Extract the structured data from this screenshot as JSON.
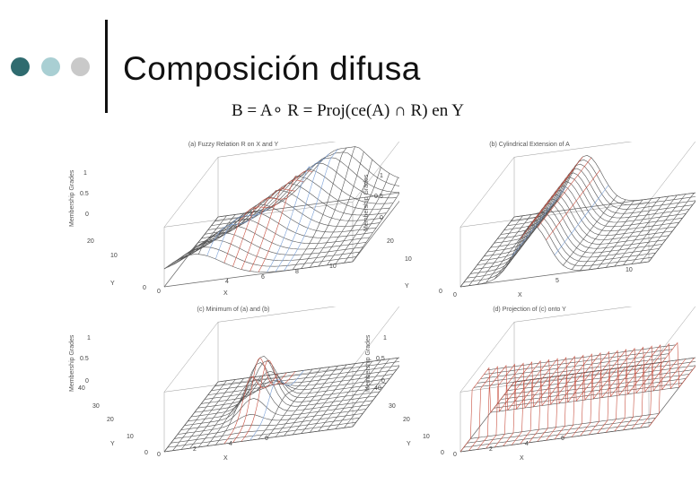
{
  "slide": {
    "title": "Composición difusa",
    "formula": "B = A∘ R = Proj(ce(A) ∩ R) en Y"
  },
  "panels": [
    {
      "id": "a",
      "title": "(a) Fuzzy Relation R on X and Y",
      "z_axis_label": "Membership Grades",
      "shape": "ridge",
      "z_ticks": [
        "1",
        "0.5",
        "0"
      ],
      "y_ticks": [
        "20",
        "10",
        "0"
      ],
      "x_ticks": [
        "0",
        "4",
        "6",
        "8",
        "10"
      ],
      "y_axis_label": "Y",
      "x_axis_label": "X"
    },
    {
      "id": "b",
      "title": "(b) Cylindrical Extension of A",
      "z_axis_label": "Membership Grades",
      "shape": "cylinder",
      "z_ticks": [
        "1",
        "0.5",
        "0"
      ],
      "y_ticks": [
        "20",
        "10",
        "0"
      ],
      "x_ticks": [
        "0",
        "5",
        "10"
      ],
      "y_axis_label": "Y",
      "x_axis_label": "X"
    },
    {
      "id": "c",
      "title": "(c) Minimum of (a) and (b)",
      "z_axis_label": "Membership Grades",
      "shape": "bump",
      "z_ticks": [
        "1",
        "0.5",
        "0"
      ],
      "y_ticks": [
        "40",
        "30",
        "20",
        "10",
        "0"
      ],
      "x_ticks": [
        "0",
        "2",
        "4",
        "6"
      ],
      "y_axis_label": "Y",
      "x_axis_label": "X"
    },
    {
      "id": "d",
      "title": "(d) Projection of (c) onto Y",
      "z_axis_label": "Membership Grades",
      "shape": "plateau",
      "z_ticks": [
        "1",
        "0.5",
        "0"
      ],
      "y_ticks": [
        "40",
        "30",
        "20",
        "10",
        "0"
      ],
      "x_ticks": [
        "0",
        "2",
        "4",
        "6"
      ],
      "y_axis_label": "Y",
      "x_axis_label": "X"
    }
  ]
}
